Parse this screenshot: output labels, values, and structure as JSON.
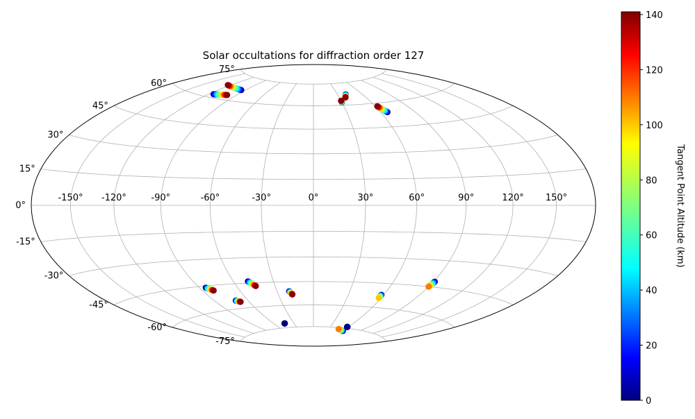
{
  "chart_data": {
    "type": "scatter",
    "projection": "hammer",
    "title": "Solar occultations for diffraction order 127",
    "x_ticks": [
      "-150°",
      "-120°",
      "-90°",
      "-60°",
      "-30°",
      "0°",
      "30°",
      "60°",
      "90°",
      "120°",
      "150°"
    ],
    "y_ticks": [
      "75°",
      "60°",
      "45°",
      "30°",
      "15°",
      "0°",
      "-15°",
      "-30°",
      "-45°",
      "-60°",
      "-75°"
    ],
    "grid": true,
    "colorbar": {
      "label": "Tangent Point Altitude (km)",
      "min": 0,
      "max": 141,
      "ticks": [
        "0",
        "20",
        "40",
        "60",
        "80",
        "100",
        "120",
        "140"
      ],
      "colormap": "jet"
    },
    "tracks": [
      {
        "lon_start": -95,
        "lat_start": 67,
        "lon_end": -123,
        "lat_end": 68,
        "alt_start": 0,
        "alt_end": 140
      },
      {
        "lon_start": -115,
        "lat_start": 62,
        "lon_end": -100,
        "lat_end": 63,
        "alt_start": 0,
        "alt_end": 140
      },
      {
        "lon_start": 40,
        "lat_start": 67,
        "lon_end": 37,
        "lat_end": 65,
        "alt_start": 0,
        "alt_end": 140
      },
      {
        "lon_start": 30,
        "lat_start": 62,
        "lon_end": 30,
        "lat_end": 63,
        "alt_start": 0,
        "alt_end": 140
      },
      {
        "lon_start": 66,
        "lat_start": 54,
        "lon_end": 62,
        "lat_end": 58,
        "alt_start": 0,
        "alt_end": 140
      },
      {
        "lon_start": -85,
        "lat_start": -46,
        "lon_end": -81,
        "lat_end": -48,
        "alt_start": 0,
        "alt_end": 140
      },
      {
        "lon_start": -49,
        "lat_start": -44,
        "lon_end": -45,
        "lat_end": -47,
        "alt_start": 0,
        "alt_end": 140
      },
      {
        "lon_start": -71,
        "lat_start": -55,
        "lon_end": -68,
        "lat_end": -56,
        "alt_start": 0,
        "alt_end": 140
      },
      {
        "lon_start": -20,
        "lat_start": -51,
        "lon_end": -18,
        "lat_end": -53,
        "alt_start": 0,
        "alt_end": 140
      },
      {
        "lon_start": -44,
        "lat_start": -72,
        "lon_end": -44,
        "lat_end": -72,
        "alt_start": 0,
        "alt_end": 0
      },
      {
        "lon_start": 58,
        "lat_start": -52,
        "lon_end": 58,
        "lat_end": -54,
        "alt_start": 0,
        "alt_end": 100
      },
      {
        "lon_start": 91,
        "lat_start": -42,
        "lon_end": 90,
        "lat_end": -45,
        "alt_start": 0,
        "alt_end": 110
      },
      {
        "lon_start": 61,
        "lat_start": -77,
        "lon_end": 48,
        "lat_end": -76,
        "alt_start": 0,
        "alt_end": 110
      },
      {
        "lon_start": 58,
        "lat_start": -74,
        "lon_end": 58,
        "lat_end": -74,
        "alt_start": 0,
        "alt_end": 0
      }
    ]
  }
}
